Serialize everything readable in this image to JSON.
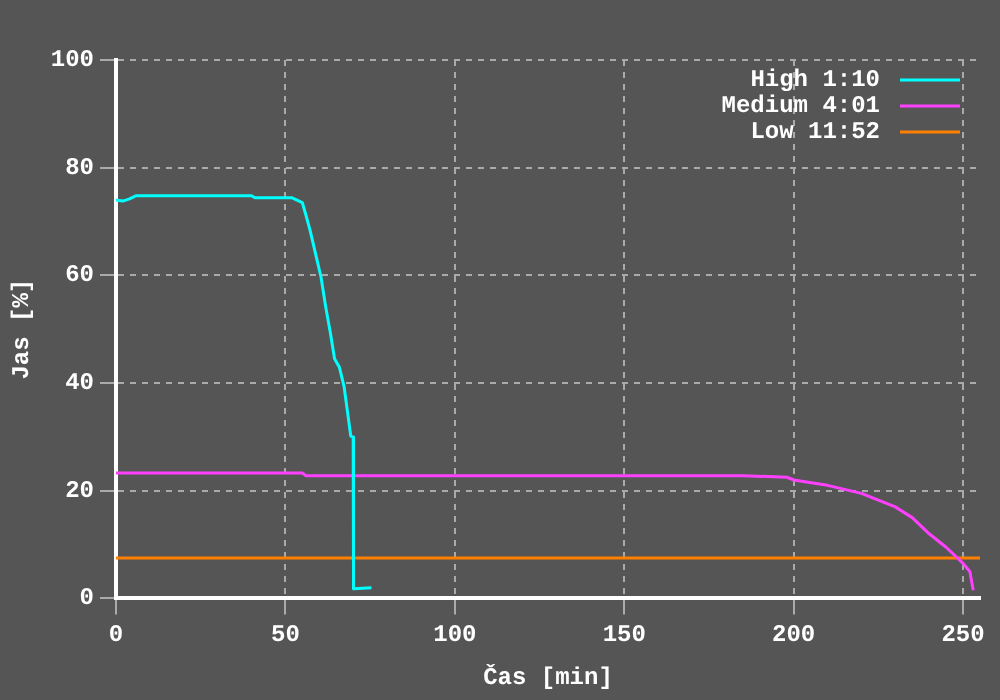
{
  "chart_data": {
    "type": "line",
    "xlabel": "Čas [min]",
    "ylabel": "Jas [%]",
    "xlim": [
      0,
      255
    ],
    "xticks": [
      0,
      50,
      100,
      150,
      200,
      250
    ],
    "ylim": [
      0,
      100
    ],
    "yticks": [
      0,
      20,
      40,
      60,
      80,
      100
    ],
    "grid": true,
    "legend": "top right",
    "marker": "none",
    "line_style": "solid",
    "series": [
      {
        "name": "High 1:10",
        "color": "#00ffff",
        "x": [
          0,
          2,
          4,
          6,
          40,
          41,
          52,
          55,
          56,
          57.3,
          58.9,
          60.5,
          61.9,
          63.3,
          64.5,
          65.9,
          67.3,
          68.5,
          69.3,
          70,
          70.1,
          75.4
        ],
        "values": [
          74,
          73.8,
          74.2,
          74.8,
          74.8,
          74.4,
          74.4,
          73.5,
          71.3,
          68.3,
          64,
          59.7,
          54.1,
          49.2,
          44.5,
          43,
          39.4,
          33.8,
          30.1,
          30,
          1.8,
          2
        ]
      },
      {
        "name": "Medium 4:01",
        "color": "#ff40ff",
        "x": [
          0,
          55,
          56,
          185,
          198,
          200,
          210,
          220,
          230,
          235,
          240,
          245,
          250,
          252,
          253
        ],
        "values": [
          23.3,
          23.3,
          22.8,
          22.8,
          22.5,
          22,
          21,
          19.5,
          17,
          15,
          12,
          9.5,
          6.5,
          5,
          1.5
        ]
      },
      {
        "name": "Low 11:52",
        "color": "#ff8000",
        "x": [
          0,
          255
        ],
        "values": [
          7.5,
          7.5
        ]
      }
    ]
  }
}
